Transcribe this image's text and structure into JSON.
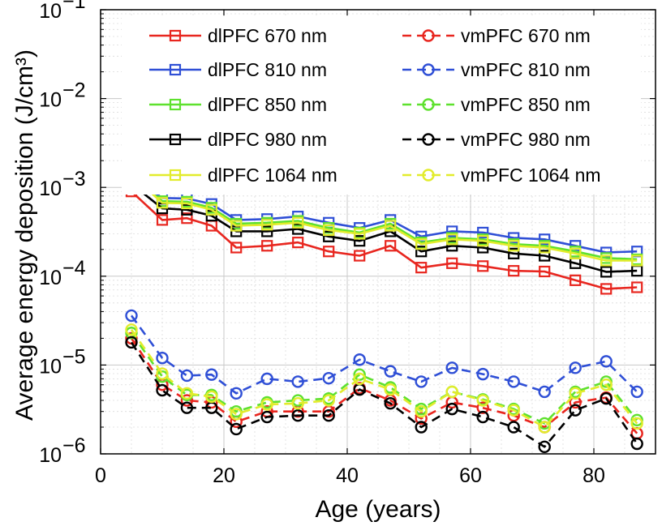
{
  "chart_data": {
    "type": "line",
    "title": "",
    "xlabel": "Age (years)",
    "ylabel": "Average energy deposition (J/cm³)",
    "yscale": "log",
    "xlim": [
      0,
      90
    ],
    "ylim": [
      1e-06,
      0.1
    ],
    "grid": true,
    "legend_position": "top",
    "x_ticks": [
      0,
      20,
      40,
      60,
      80
    ],
    "y_ticks": [
      {
        "value": 1e-06,
        "base": "10",
        "exp": "−6"
      },
      {
        "value": 1e-05,
        "base": "10",
        "exp": "−5"
      },
      {
        "value": 0.0001,
        "base": "10",
        "exp": "−4"
      },
      {
        "value": 0.001,
        "base": "10",
        "exp": "−3"
      },
      {
        "value": 0.01,
        "base": "10",
        "exp": "−2"
      },
      {
        "value": 0.1,
        "base": "10",
        "exp": "−1"
      }
    ],
    "x": [
      5,
      10,
      14,
      18,
      22,
      27,
      32,
      37,
      42,
      47,
      52,
      57,
      62,
      67,
      72,
      77,
      82,
      87
    ],
    "series": [
      {
        "name": "dlPFC 670 nm",
        "color": "#e8261f",
        "style": "solid",
        "marker": "square",
        "values": [
          0.0009,
          0.00043,
          0.00045,
          0.00037,
          0.00021,
          0.00022,
          0.00024,
          0.00019,
          0.00017,
          0.00022,
          0.000125,
          0.00014,
          0.00013,
          0.000115,
          0.000113,
          9e-05,
          7.2e-05,
          7.5e-05
        ]
      },
      {
        "name": "dlPFC 810 nm",
        "color": "#2f4fd6",
        "style": "solid",
        "marker": "square",
        "values": [
          0.00135,
          0.00076,
          0.00075,
          0.00065,
          0.00043,
          0.00044,
          0.00047,
          0.0004,
          0.00035,
          0.00043,
          0.00028,
          0.00032,
          0.00031,
          0.00027,
          0.00026,
          0.00022,
          0.000185,
          0.00019
        ]
      },
      {
        "name": "dlPFC 850 nm",
        "color": "#5ee12e",
        "style": "solid",
        "marker": "square",
        "values": [
          0.0013,
          0.0007,
          0.00069,
          0.00059,
          0.00039,
          0.0004,
          0.00042,
          0.00035,
          0.00031,
          0.00039,
          0.00024,
          0.00027,
          0.00026,
          0.00023,
          0.00022,
          0.00019,
          0.00016,
          0.000155
        ]
      },
      {
        "name": "dlPFC 980 nm",
        "color": "#000000",
        "style": "solid",
        "marker": "square",
        "values": [
          0.0011,
          0.00058,
          0.00056,
          0.00048,
          0.00032,
          0.00032,
          0.00034,
          0.00028,
          0.00025,
          0.00032,
          0.00019,
          0.00022,
          0.00021,
          0.00018,
          0.00017,
          0.00014,
          0.000112,
          0.000115
        ]
      },
      {
        "name": "dlPFC 1064 nm",
        "color": "#e2ec2c",
        "style": "solid",
        "marker": "square",
        "values": [
          0.00138,
          0.00067,
          0.00066,
          0.00056,
          0.00037,
          0.00038,
          0.0004,
          0.00033,
          0.0003,
          0.00037,
          0.00023,
          0.00026,
          0.00025,
          0.00022,
          0.00021,
          0.00018,
          0.00015,
          0.00015
        ]
      },
      {
        "name": "vmPFC 670 nm",
        "color": "#e8261f",
        "style": "dashed",
        "marker": "circle",
        "values": [
          2e-05,
          6e-06,
          4e-06,
          3.8e-06,
          2.3e-06,
          3e-06,
          3e-06,
          3e-06,
          5.5e-06,
          4e-06,
          2.5e-06,
          3.8e-06,
          3.3e-06,
          2.7e-06,
          2e-06,
          3.8e-06,
          4.3e-06,
          1.7e-06
        ]
      },
      {
        "name": "vmPFC 810 nm",
        "color": "#2f4fd6",
        "style": "dashed",
        "marker": "circle",
        "values": [
          3.6e-05,
          1.2e-05,
          7.6e-06,
          7.8e-06,
          4.8e-06,
          7e-06,
          6.5e-06,
          7.1e-06,
          1.15e-05,
          8.5e-06,
          6.5e-06,
          9.3e-06,
          7.9e-06,
          6.5e-06,
          5e-06,
          9.3e-06,
          1.1e-05,
          5e-06
        ]
      },
      {
        "name": "vmPFC 850 nm",
        "color": "#5ee12e",
        "style": "dashed",
        "marker": "circle",
        "values": [
          2.3e-05,
          7.4e-06,
          4.6e-06,
          4.6e-06,
          3e-06,
          3.8e-06,
          4e-06,
          4.2e-06,
          7.8e-06,
          5.6e-06,
          3.2e-06,
          5e-06,
          4.1e-06,
          3.2e-06,
          2.2e-06,
          5e-06,
          6.5e-06,
          2.4e-06
        ]
      },
      {
        "name": "vmPFC 980 nm",
        "color": "#000000",
        "style": "dashed",
        "marker": "circle",
        "values": [
          1.8e-05,
          5.2e-06,
          3.3e-06,
          3.3e-06,
          1.9e-06,
          2.6e-06,
          2.7e-06,
          2.7e-06,
          5.3e-06,
          3.7e-06,
          2e-06,
          3.2e-06,
          2.6e-06,
          2e-06,
          1.2e-06,
          3.1e-06,
          4.2e-06,
          1.3e-06
        ]
      },
      {
        "name": "vmPFC 1064 nm",
        "color": "#e2ec2c",
        "style": "dashed",
        "marker": "circle",
        "values": [
          2.5e-05,
          8e-06,
          4.8e-06,
          4.4e-06,
          2.8e-06,
          3.6e-06,
          3.7e-06,
          4e-06,
          7e-06,
          5.3e-06,
          3e-06,
          5e-06,
          4e-06,
          3.1e-06,
          2e-06,
          4.8e-06,
          6e-06,
          2.2e-06
        ]
      }
    ]
  }
}
